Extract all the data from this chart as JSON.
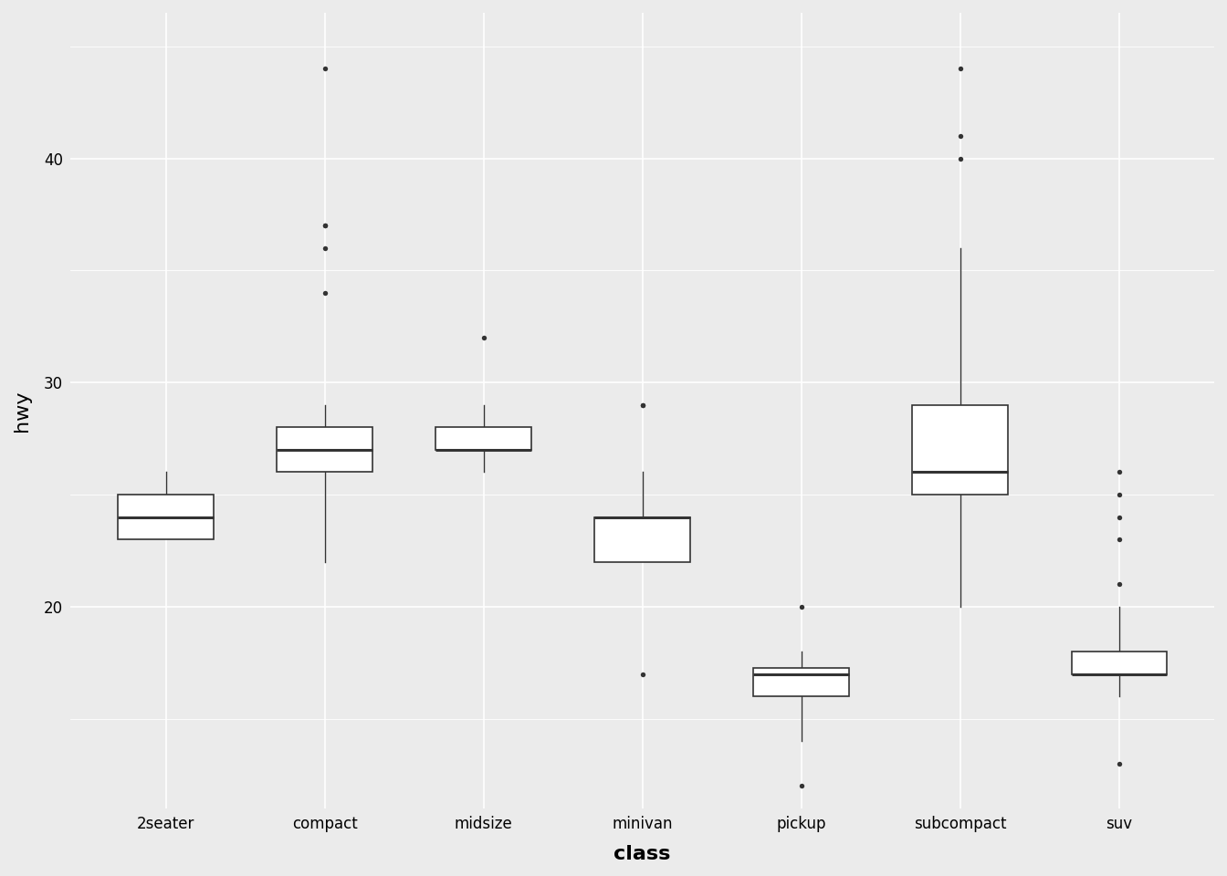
{
  "categories": [
    "2seater",
    "compact",
    "midsize",
    "minivan",
    "pickup",
    "subcompact",
    "suv"
  ],
  "hwy_data": {
    "2seater": [
      23,
      23,
      24,
      25,
      26
    ],
    "compact": [
      29,
      29,
      28,
      29,
      26,
      26,
      27,
      27,
      26,
      26,
      26,
      27,
      27,
      27,
      26,
      26,
      26,
      26,
      29,
      27,
      24,
      24,
      34,
      36,
      22,
      27,
      27,
      28,
      29,
      26,
      27,
      24,
      24,
      25,
      25,
      26,
      27,
      27,
      27,
      26,
      26,
      26,
      37,
      37,
      44,
      28,
      28,
      28,
      29,
      25,
      26,
      28,
      28
    ],
    "midsize": [
      26,
      27,
      28,
      26,
      26,
      27,
      27,
      27,
      28,
      28,
      27,
      28,
      27,
      28,
      28,
      28,
      27,
      27,
      26,
      26,
      26,
      32,
      27,
      29,
      26,
      26,
      27,
      27,
      26,
      26,
      28,
      26,
      28,
      28,
      28,
      28,
      28,
      28,
      27,
      28,
      28,
      27,
      27,
      27,
      28
    ],
    "minivan": [
      22,
      22,
      24,
      24,
      24,
      22,
      24,
      24,
      29,
      29,
      23,
      26,
      17
    ],
    "pickup": [
      16,
      16,
      16,
      18,
      17,
      17,
      15,
      17,
      18,
      17,
      18,
      16,
      16,
      14,
      17,
      17,
      14,
      14,
      12,
      17,
      17,
      15,
      15,
      15,
      15,
      15,
      16,
      17,
      17,
      17,
      17,
      18,
      18,
      17,
      18,
      18,
      17,
      18,
      17,
      17,
      17,
      18,
      18,
      20
    ],
    "subcompact": [
      36,
      36,
      29,
      26,
      27,
      30,
      40,
      21,
      20,
      20,
      26,
      26,
      26,
      26,
      44,
      41,
      29,
      26,
      28,
      28,
      26,
      26,
      26,
      23,
      23,
      23,
      23,
      24,
      25,
      25,
      29,
      29,
      28,
      29,
      26,
      26,
      26
    ],
    "suv": [
      17,
      17,
      21,
      19,
      17,
      18,
      18,
      17,
      17,
      17,
      17,
      17,
      17,
      13,
      18,
      18,
      18,
      18,
      17,
      17,
      17,
      16,
      17,
      17,
      17,
      17,
      17,
      18,
      18,
      17,
      17,
      16,
      19,
      20,
      17,
      17,
      17,
      17,
      18,
      17,
      18,
      18,
      19,
      19,
      20,
      18,
      18,
      17,
      17,
      17,
      17,
      18,
      18,
      18,
      16,
      18,
      18,
      17,
      17,
      16,
      17,
      17,
      18,
      18,
      18,
      16,
      19,
      17,
      17,
      24,
      26,
      23,
      25,
      17,
      18,
      17,
      17
    ]
  },
  "bg_color": "#ebebeb",
  "grid_color": "#ffffff",
  "box_fill": "#ffffff",
  "box_edge": "#333333",
  "median_color": "#333333",
  "whisker_color": "#333333",
  "flier_color": "#333333",
  "coef": 2.0,
  "ylabel": "hwy",
  "xlabel": "class",
  "ylim_min": 11,
  "ylim_max": 46.5,
  "yticks": [
    20,
    30,
    40
  ],
  "box_width": 0.6,
  "label_fontsize": 16,
  "tick_fontsize": 12
}
